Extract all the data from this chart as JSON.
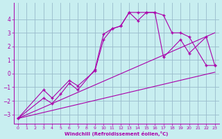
{
  "xlabel": "Windchill (Refroidissement éolien,°C)",
  "bg_color": "#c8eef0",
  "line_color": "#aa00aa",
  "grid_color": "#99bbcc",
  "xlim": [
    -0.5,
    23.5
  ],
  "ylim": [
    -3.7,
    5.2
  ],
  "xticks": [
    0,
    1,
    2,
    3,
    4,
    5,
    6,
    7,
    8,
    9,
    10,
    11,
    12,
    13,
    14,
    15,
    16,
    17,
    18,
    19,
    20,
    21,
    22,
    23
  ],
  "yticks": [
    -3,
    -2,
    -1,
    0,
    1,
    2,
    3,
    4
  ],
  "line1_x": [
    0,
    3,
    4,
    5,
    6,
    7,
    9,
    10,
    11,
    12,
    13,
    14,
    15,
    16,
    17,
    18,
    19,
    20,
    22,
    23
  ],
  "line1_y": [
    -3.3,
    -1.8,
    -2.2,
    -1.5,
    -0.7,
    -1.2,
    0.3,
    2.9,
    3.3,
    3.5,
    4.5,
    3.9,
    4.5,
    4.5,
    4.3,
    3.0,
    3.0,
    2.7,
    0.6,
    0.6
  ],
  "line2_x": [
    0,
    3,
    4,
    6,
    7,
    9,
    10,
    11,
    12,
    13,
    14,
    15,
    16,
    17,
    19,
    20,
    22,
    23
  ],
  "line2_y": [
    -3.3,
    -1.2,
    -1.8,
    -0.5,
    -0.9,
    0.2,
    2.5,
    3.3,
    3.5,
    4.5,
    4.5,
    4.5,
    4.5,
    1.2,
    2.5,
    1.5,
    2.7,
    0.6
  ],
  "line3_x": [
    0,
    23
  ],
  "line3_y": [
    -3.3,
    0.1
  ],
  "line4_x": [
    0,
    23
  ],
  "line4_y": [
    -3.3,
    3.0
  ]
}
